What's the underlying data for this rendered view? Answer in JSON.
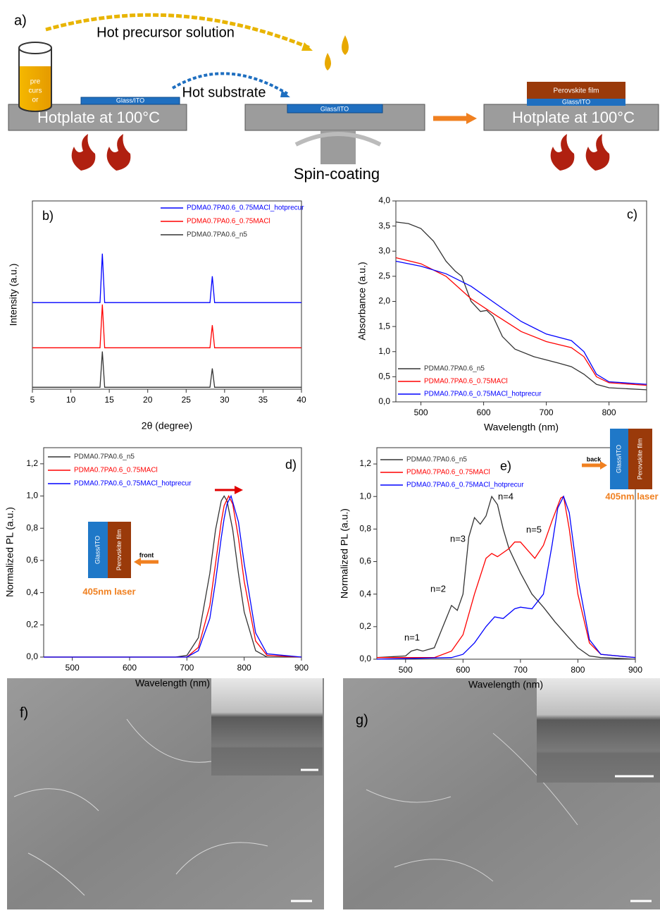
{
  "diagram": {
    "label": "a)",
    "precursor_arrow": "Hot precursor solution",
    "beaker": [
      "pre",
      "curs",
      "or"
    ],
    "substrate_arrow": "Hot substrate",
    "glass": [
      "Glass/ITO",
      "Glass/ITO",
      "Glass/ITO"
    ],
    "hotplate": [
      "Hotplate at 100°C",
      "Hotplate at 100°C"
    ],
    "spin": "Spin-coating",
    "film": "Perovskite film"
  },
  "chart_data": [
    {
      "type": "line",
      "label": "b)",
      "xlabel": "2θ (degree)",
      "ylabel": "Intensity (a.u.)",
      "xlim": [
        5,
        40
      ],
      "xticks": [
        5,
        10,
        15,
        20,
        25,
        30,
        35,
        40
      ],
      "ylim": [
        0,
        10
      ],
      "legend": "upper right",
      "series": [
        {
          "name": "PDMA0.7PA0.6_0.75MACl_hotprecur",
          "color": "#0000ff",
          "x": [
            5,
            13.8,
            14.1,
            14.4,
            28.1,
            28.4,
            28.7,
            40
          ],
          "values": [
            4.6,
            4.6,
            7.2,
            4.6,
            4.6,
            6.0,
            4.6,
            4.6
          ]
        },
        {
          "name": "PDMA0.7PA0.6_0.75MACl",
          "color": "#ff0000",
          "x": [
            5,
            13.8,
            14.1,
            14.4,
            28.1,
            28.4,
            28.7,
            40
          ],
          "values": [
            2.2,
            2.2,
            4.5,
            2.2,
            2.2,
            3.4,
            2.2,
            2.2
          ]
        },
        {
          "name": "PDMA0.7PA0.6_n5",
          "color": "#333333",
          "x": [
            5,
            13.8,
            14.1,
            14.4,
            28.1,
            28.4,
            28.7,
            40
          ],
          "values": [
            0.1,
            0.1,
            2.0,
            0.1,
            0.1,
            1.1,
            0.1,
            0.1
          ]
        }
      ]
    },
    {
      "type": "line",
      "label": "c)",
      "xlabel": "Wavelength (nm)",
      "ylabel": "Absorbance (a.u.)",
      "xlim": [
        460,
        860
      ],
      "xticks": [
        500,
        600,
        700,
        800
      ],
      "ylim": [
        0,
        4
      ],
      "yticks": [
        {
          "value": 0,
          "label": "0,0"
        },
        {
          "value": 0.5,
          "label": "0,5"
        },
        {
          "value": 1,
          "label": "1,0"
        },
        {
          "value": 1.5,
          "label": "1,5"
        },
        {
          "value": 2,
          "label": "2,0"
        },
        {
          "value": 2.5,
          "label": "2,5"
        },
        {
          "value": 3,
          "label": "3,0"
        },
        {
          "value": 3.5,
          "label": "3,5"
        },
        {
          "value": 4,
          "label": "4,0"
        }
      ],
      "legend": "lower left",
      "series": [
        {
          "name": "PDMA0.7PA0.6_n5",
          "color": "#333333",
          "x": [
            460,
            480,
            500,
            520,
            540,
            555,
            565,
            580,
            595,
            605,
            615,
            630,
            650,
            680,
            720,
            740,
            760,
            780,
            800,
            860
          ],
          "values": [
            3.58,
            3.55,
            3.45,
            3.2,
            2.8,
            2.6,
            2.5,
            2.0,
            1.8,
            1.82,
            1.7,
            1.3,
            1.05,
            0.9,
            0.77,
            0.7,
            0.55,
            0.35,
            0.28,
            0.24
          ]
        },
        {
          "name": "PDMA0.7PA0.6_0.75MACl",
          "color": "#ff0000",
          "x": [
            460,
            500,
            540,
            580,
            620,
            660,
            700,
            740,
            760,
            780,
            800,
            860
          ],
          "values": [
            2.87,
            2.75,
            2.5,
            2.05,
            1.72,
            1.4,
            1.2,
            1.08,
            0.9,
            0.5,
            0.38,
            0.33
          ]
        },
        {
          "name": "PDMA0.7PA0.6_0.75MACl_hotprecur",
          "color": "#0000ff",
          "x": [
            460,
            500,
            540,
            580,
            620,
            660,
            700,
            740,
            760,
            780,
            800,
            860
          ],
          "values": [
            2.8,
            2.7,
            2.55,
            2.3,
            1.95,
            1.6,
            1.35,
            1.22,
            1.0,
            0.55,
            0.4,
            0.35
          ]
        }
      ]
    },
    {
      "type": "line",
      "label": "d)",
      "xlabel": "Wavelength (nm)",
      "ylabel": "Normalized PL (a.u.)",
      "xlim": [
        450,
        900
      ],
      "xticks": [
        500,
        600,
        700,
        800,
        900
      ],
      "ylim": [
        0,
        1.3
      ],
      "yticks": [
        {
          "value": 0,
          "label": "0,0"
        },
        {
          "value": 0.2,
          "label": "0,2"
        },
        {
          "value": 0.4,
          "label": "0,4"
        },
        {
          "value": 0.6,
          "label": "0,6"
        },
        {
          "value": 0.8,
          "label": "0,8"
        },
        {
          "value": 1,
          "label": "1,0"
        },
        {
          "value": 1.2,
          "label": "1,2"
        }
      ],
      "legend": "upper left",
      "inset": {
        "substrate": "Glass/ITO",
        "film": "Perovskite film",
        "beam": "front",
        "laser": "405nm laser"
      },
      "series": [
        {
          "name": "PDMA0.7PA0.6_n5",
          "color": "#333333",
          "x": [
            450,
            680,
            700,
            720,
            740,
            750,
            760,
            765,
            770,
            780,
            790,
            800,
            820,
            840,
            900
          ],
          "values": [
            0,
            0,
            0.01,
            0.12,
            0.52,
            0.79,
            0.97,
            1,
            0.97,
            0.79,
            0.52,
            0.28,
            0.04,
            0,
            0
          ]
        },
        {
          "name": "PDMA0.7PA0.6_0.75MACl",
          "color": "#ff0000",
          "x": [
            450,
            680,
            700,
            720,
            740,
            750,
            760,
            765,
            773,
            780,
            790,
            800,
            820,
            840,
            900
          ],
          "values": [
            0,
            0,
            0,
            0.06,
            0.32,
            0.58,
            0.84,
            0.94,
            1,
            0.95,
            0.74,
            0.47,
            0.1,
            0.01,
            0
          ]
        },
        {
          "name": "PDMA0.7PA0.6_0.75MACl_hotprecur",
          "color": "#0000ff",
          "x": [
            450,
            680,
            700,
            720,
            740,
            750,
            760,
            765,
            770,
            777,
            790,
            800,
            820,
            840,
            900
          ],
          "values": [
            0,
            0,
            0,
            0.04,
            0.24,
            0.47,
            0.74,
            0.86,
            0.95,
            1,
            0.84,
            0.58,
            0.15,
            0.02,
            0
          ]
        }
      ]
    },
    {
      "type": "line",
      "label": "e)",
      "xlabel": "Wavelength (nm)",
      "ylabel": "Normalized PL (a.u.)",
      "xlim": [
        450,
        900
      ],
      "xticks": [
        500,
        600,
        700,
        800,
        900
      ],
      "ylim": [
        0,
        1.3
      ],
      "yticks": [
        {
          "value": 0,
          "label": "0,0"
        },
        {
          "value": 0.2,
          "label": "0,2"
        },
        {
          "value": 0.4,
          "label": "0,4"
        },
        {
          "value": 0.6,
          "label": "0,6"
        },
        {
          "value": 0.8,
          "label": "0,8"
        },
        {
          "value": 1,
          "label": "1,0"
        },
        {
          "value": 1.2,
          "label": "1,2"
        }
      ],
      "legend": "upper left",
      "annotations": [
        "n=1",
        "n=2",
        "n=3",
        "n=4",
        "n=5"
      ],
      "inset": {
        "substrate": "Glass/ITO",
        "film": "Perovskite film",
        "beam": "back",
        "laser": "405nm laser"
      },
      "series": [
        {
          "name": "PDMA0.7PA0.6_n5",
          "color": "#333333",
          "x": [
            450,
            500,
            510,
            520,
            530,
            550,
            565,
            580,
            590,
            600,
            610,
            620,
            630,
            640,
            650,
            660,
            670,
            680,
            700,
            720,
            740,
            760,
            780,
            800,
            820,
            840,
            900
          ],
          "values": [
            0.01,
            0.02,
            0.05,
            0.06,
            0.05,
            0.07,
            0.2,
            0.33,
            0.3,
            0.4,
            0.75,
            0.87,
            0.83,
            0.88,
            1.0,
            0.95,
            0.8,
            0.68,
            0.53,
            0.4,
            0.32,
            0.23,
            0.15,
            0.07,
            0.02,
            0.01,
            0
          ]
        },
        {
          "name": "PDMA0.7PA0.6_0.75MACl",
          "color": "#ff0000",
          "x": [
            450,
            550,
            580,
            600,
            620,
            640,
            650,
            660,
            680,
            690,
            700,
            710,
            725,
            740,
            755,
            770,
            775,
            785,
            800,
            820,
            840,
            900
          ],
          "values": [
            0.01,
            0.01,
            0.05,
            0.15,
            0.4,
            0.62,
            0.65,
            0.63,
            0.68,
            0.72,
            0.72,
            0.68,
            0.62,
            0.7,
            0.85,
            0.99,
            1.0,
            0.8,
            0.4,
            0.1,
            0.03,
            0.01
          ]
        },
        {
          "name": "PDMA0.7PA0.6_0.75MACl_hotprecur",
          "color": "#0000ff",
          "x": [
            450,
            580,
            600,
            620,
            640,
            655,
            670,
            690,
            700,
            720,
            740,
            755,
            765,
            775,
            785,
            800,
            820,
            840,
            900
          ],
          "values": [
            0,
            0.01,
            0.03,
            0.1,
            0.2,
            0.26,
            0.25,
            0.31,
            0.32,
            0.31,
            0.4,
            0.7,
            0.93,
            1.0,
            0.9,
            0.5,
            0.12,
            0.03,
            0.01
          ]
        }
      ]
    }
  ],
  "images": [
    {
      "label": "f)"
    },
    {
      "label": "g)"
    }
  ]
}
